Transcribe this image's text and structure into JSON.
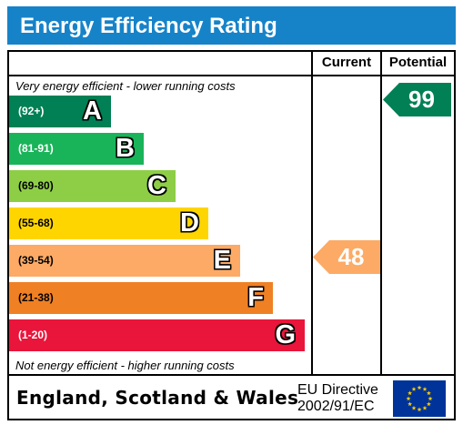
{
  "title": "Energy Efficiency Rating",
  "columns": {
    "current": "Current",
    "potential": "Potential"
  },
  "top_note": "Very energy efficient - lower running costs",
  "bottom_note": "Not energy efficient - higher running costs",
  "footer": {
    "country": "England, Scotland & Wales",
    "directive_line1": "EU Directive",
    "directive_line2": "2002/91/EC",
    "flag_icon": "eu-flag-icon"
  },
  "chart_data": {
    "type": "bar",
    "categories": [
      "A",
      "B",
      "C",
      "D",
      "E",
      "F",
      "G"
    ],
    "ranges": [
      "(92+)",
      "(81-91)",
      "(69-80)",
      "(55-68)",
      "(39-54)",
      "(21-38)",
      "(1-20)"
    ],
    "colors": [
      "#008054",
      "#19b459",
      "#8dce46",
      "#ffd500",
      "#fcaa65",
      "#ef8023",
      "#e9153b"
    ],
    "range_text_colors": [
      "#ffffff",
      "#ffffff",
      "#000000",
      "#000000",
      "#000000",
      "#000000",
      "#ffffff"
    ],
    "current": {
      "value": 48,
      "band": "E",
      "color": "#fcaa65"
    },
    "potential": {
      "value": 99,
      "band": "A",
      "color": "#008054"
    }
  }
}
